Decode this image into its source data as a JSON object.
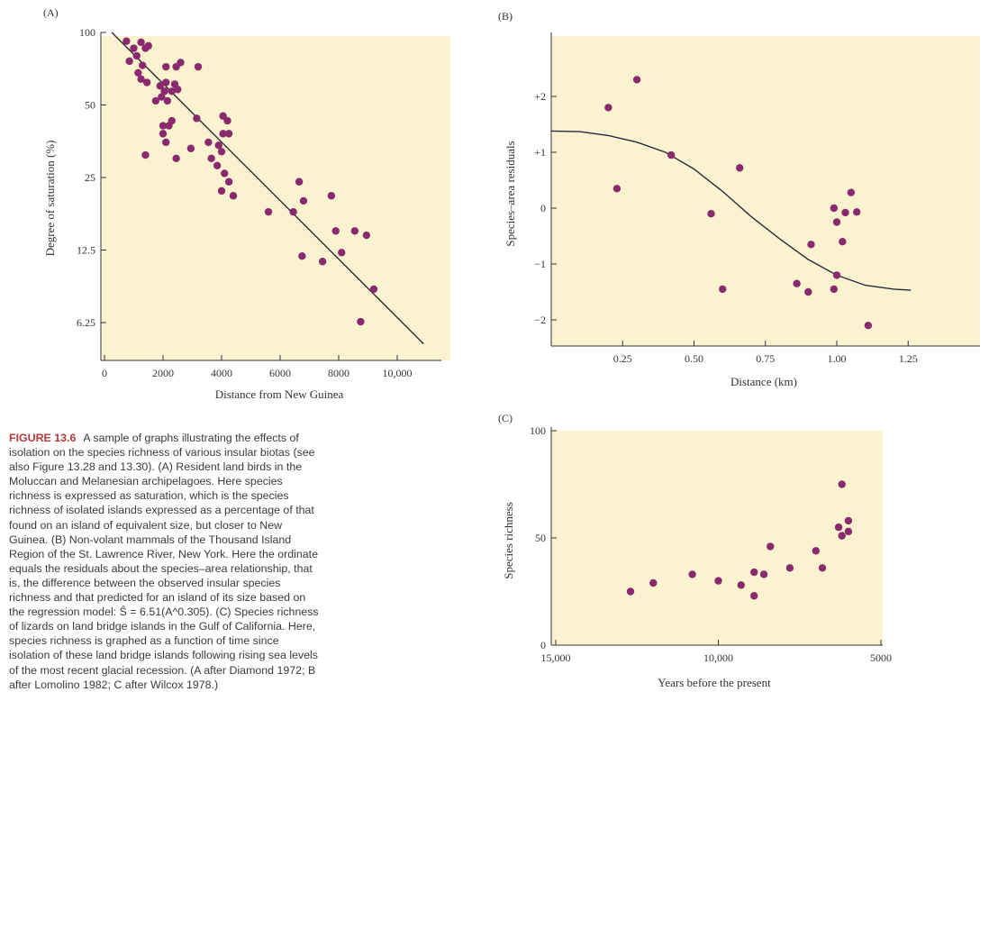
{
  "colors": {
    "plot_bg": "#fbf3cf",
    "dot": "#8a2a6e",
    "line": "#2a2a3a",
    "axis": "#333333"
  },
  "chart_data": [
    {
      "panel": "(A)",
      "type": "scatter",
      "xlabel": "Distance from New Guinea",
      "ylabel": "Degree of saturation (%)",
      "y_scale": "log",
      "xlim": [
        0,
        12000
      ],
      "ylim": [
        4.9,
        100
      ],
      "x_ticks": [
        0,
        2000,
        4000,
        6000,
        8000,
        10000
      ],
      "x_tick_labels": [
        "0",
        "2000",
        "4000",
        "6000",
        "8000",
        "10,000"
      ],
      "y_ticks": [
        100,
        50,
        25,
        12.5,
        6.25
      ],
      "y_tick_labels": [
        "100",
        "50",
        "25",
        "12.5",
        "6.25"
      ],
      "points": [
        [
          750,
          92
        ],
        [
          1000,
          86
        ],
        [
          1250,
          91
        ],
        [
          1400,
          86
        ],
        [
          1500,
          88
        ],
        [
          850,
          76
        ],
        [
          1100,
          80
        ],
        [
          1300,
          73
        ],
        [
          1150,
          68
        ],
        [
          1250,
          64
        ],
        [
          1450,
          62
        ],
        [
          1900,
          60
        ],
        [
          2100,
          62
        ],
        [
          2050,
          57
        ],
        [
          1750,
          52
        ],
        [
          1950,
          54
        ],
        [
          2150,
          52
        ],
        [
          2300,
          57
        ],
        [
          2400,
          61
        ],
        [
          2500,
          58
        ],
        [
          2600,
          75
        ],
        [
          2450,
          72
        ],
        [
          2100,
          72
        ],
        [
          3200,
          72
        ],
        [
          3150,
          44
        ],
        [
          2000,
          41
        ],
        [
          2200,
          41
        ],
        [
          2300,
          43
        ],
        [
          2000,
          38
        ],
        [
          2100,
          35
        ],
        [
          1400,
          31
        ],
        [
          2450,
          30
        ],
        [
          2950,
          33
        ],
        [
          3550,
          35
        ],
        [
          3650,
          30
        ],
        [
          3900,
          34
        ],
        [
          4050,
          38
        ],
        [
          4050,
          45
        ],
        [
          4200,
          43
        ],
        [
          4250,
          38
        ],
        [
          4000,
          32
        ],
        [
          3850,
          28
        ],
        [
          4100,
          26
        ],
        [
          4250,
          24
        ],
        [
          4000,
          22
        ],
        [
          4400,
          21
        ],
        [
          5600,
          18
        ],
        [
          6450,
          18
        ],
        [
          6800,
          20
        ],
        [
          6650,
          24
        ],
        [
          7750,
          21
        ],
        [
          7900,
          15
        ],
        [
          8550,
          15
        ],
        [
          8950,
          14.4
        ],
        [
          6750,
          11.8
        ],
        [
          7450,
          11.2
        ],
        [
          8100,
          12.2
        ],
        [
          9200,
          8.6
        ],
        [
          8750,
          6.3
        ]
      ],
      "fit_line": {
        "type": "linear",
        "points": [
          [
            250,
            100
          ],
          [
            10900,
            5.1
          ]
        ]
      }
    },
    {
      "panel": "(B)",
      "type": "scatter",
      "xlabel": "Distance (km)",
      "ylabel": "Species–area residuals",
      "xlim": [
        0,
        1.5
      ],
      "ylim": [
        -2.5,
        3.1
      ],
      "x_ticks": [
        0.25,
        0.5,
        0.75,
        1.0,
        1.25
      ],
      "x_tick_labels": [
        "0.25",
        "0.50",
        "0.75",
        "1.00",
        "1.25"
      ],
      "y_ticks": [
        2,
        1,
        0,
        -1,
        -2
      ],
      "y_tick_labels": [
        "+2",
        "+1",
        "0",
        "−1",
        "−2"
      ],
      "points": [
        [
          0.2,
          1.8
        ],
        [
          0.3,
          2.3
        ],
        [
          0.23,
          0.35
        ],
        [
          0.42,
          0.95
        ],
        [
          0.56,
          -0.1
        ],
        [
          0.6,
          -1.45
        ],
        [
          0.66,
          0.72
        ],
        [
          0.86,
          -1.35
        ],
        [
          0.9,
          -1.5
        ],
        [
          0.91,
          -0.65
        ],
        [
          0.99,
          -1.45
        ],
        [
          1.0,
          -1.2
        ],
        [
          1.0,
          -0.25
        ],
        [
          0.99,
          0.0
        ],
        [
          1.02,
          -0.6
        ],
        [
          1.03,
          -0.08
        ],
        [
          1.05,
          0.28
        ],
        [
          1.07,
          -0.07
        ],
        [
          1.11,
          -2.1
        ]
      ],
      "fit_curve": [
        [
          0.0,
          1.38
        ],
        [
          0.1,
          1.37
        ],
        [
          0.2,
          1.3
        ],
        [
          0.3,
          1.18
        ],
        [
          0.4,
          1.0
        ],
        [
          0.5,
          0.7
        ],
        [
          0.6,
          0.3
        ],
        [
          0.7,
          -0.15
        ],
        [
          0.8,
          -0.55
        ],
        [
          0.9,
          -0.92
        ],
        [
          1.0,
          -1.2
        ],
        [
          1.1,
          -1.38
        ],
        [
          1.2,
          -1.45
        ],
        [
          1.26,
          -1.47
        ]
      ]
    },
    {
      "panel": "(C)",
      "type": "scatter",
      "xlabel": "Years before the present",
      "ylabel": "Species richness",
      "xlim": [
        15200,
        4500
      ],
      "ylim": [
        0,
        100
      ],
      "x_ticks": [
        15000,
        10000,
        5000
      ],
      "x_tick_labels": [
        "15,000",
        "10,000",
        "5000"
      ],
      "y_ticks": [
        0,
        50,
        100
      ],
      "y_tick_labels": [
        "0",
        "50",
        "100"
      ],
      "points": [
        [
          12700,
          25
        ],
        [
          12000,
          29
        ],
        [
          10800,
          33
        ],
        [
          10000,
          30
        ],
        [
          9300,
          28
        ],
        [
          8900,
          34
        ],
        [
          8600,
          33
        ],
        [
          8400,
          46
        ],
        [
          8900,
          23
        ],
        [
          7800,
          36
        ],
        [
          7000,
          44
        ],
        [
          6800,
          36
        ],
        [
          6300,
          55
        ],
        [
          6200,
          51
        ],
        [
          6000,
          53
        ],
        [
          6000,
          58
        ],
        [
          6200,
          75
        ]
      ]
    }
  ],
  "caption": {
    "label": "FIGURE 13.6",
    "body": "A sample of graphs illustrating the effects of isolation on the species richness of various insular biotas (see also Figure 13.28 and 13.30). (A) Resident land birds in the Moluccan and Melanesian archipelagoes. Here species richness is expressed as saturation, which is the species richness of isolated islands expressed as a percentage of that found on an island of equivalent size, but closer to New Guinea. (B) Non-volant mammals of the Thousand Island Region of the St. Lawrence River, New York. Here the ordinate equals the residuals about the species–area relationship, that is, the difference between the observed insular species richness and that predicted for an island of its size based on the regression model: Ŝ = 6.51(A^0.305). (C) Species richness of lizards on land bridge islands in the Gulf of California. Here, species richness is graphed as a function of time since isolation of these land bridge islands following rising sea levels of the most recent glacial recession. (A after Diamond 1972; B after Lomolino 1982; C after Wilcox 1978.)"
  }
}
